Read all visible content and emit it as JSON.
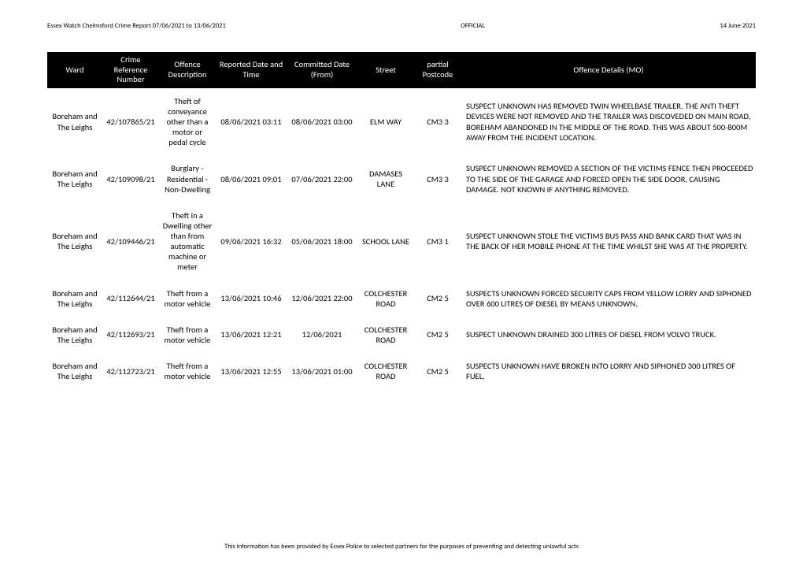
{
  "header": {
    "title_left": "Essex Watch Chelmsford Crime Report 07/06/2021 to 13/06/2021",
    "title_center": "OFFICIAL",
    "title_right": "14 June 2021"
  },
  "table": {
    "columns": [
      "Ward",
      "Crime Reference Number",
      "Offence Description",
      "Reported Date and Time",
      "Committed Date (From)",
      "Street",
      "partial Postcode",
      "Offence Details (MO)"
    ],
    "rows": [
      {
        "ward": "Boreham and The Leighs",
        "ref": "42/107865/21",
        "desc": "Theft of conveyance other than a motor or pedal cycle",
        "reported": "08/06/2021 03:11",
        "committed": "08/06/2021 03:00",
        "street": "ELM WAY",
        "postcode": "CM3 3",
        "mo": "SUSPECT UNKNOWN HAS REMOVED TWIN WHEELBASE TRAILER. THE ANTI THEFT DEVICES WERE NOT REMOVED AND THE TRAILER WAS DISCOVEDED ON MAIN ROAD, BOREHAM ABANDONED IN THE MIDDLE OF THE ROAD. THIS WAS ABOUT 500-800M AWAY FROM THE INCIDENT LOCATION."
      },
      {
        "ward": "Boreham and The Leighs",
        "ref": "42/109098/21",
        "desc": "Burglary - Residential - Non-Dwelling",
        "reported": "08/06/2021 09:01",
        "committed": "07/06/2021 22:00",
        "street": "DAMASES LANE",
        "postcode": "CM3 3",
        "mo": "SUSPECT UNKNOWN REMOVED A SECTION OF THE VICTIMS FENCE THEN PROCEEDED TO THE SIDE OF THE GARAGE AND FORCED OPEN THE SIDE DOOR, CAUSING DAMAGE. NOT KNOWN IF ANYTHING REMOVED."
      },
      {
        "ward": "Boreham and The Leighs",
        "ref": "42/109446/21",
        "desc": "Theft in a Dwelling other than from automatic machine or meter",
        "reported": "09/06/2021 16:32",
        "committed": "05/06/2021 18:00",
        "street": "SCHOOL LANE",
        "postcode": "CM3 1",
        "mo": "SUSPECT UNKNOWN STOLE THE VICTIMS BUS PASS AND BANK CARD THAT WAS IN THE BACK OF HER MOBILE PHONE AT THE TIME WHILST SHE WAS AT THE PROPERTY."
      },
      {
        "ward": "Boreham and The Leighs",
        "ref": "42/112644/21",
        "desc": "Theft from a motor vehicle",
        "reported": "13/06/2021 10:46",
        "committed": "12/06/2021 22:00",
        "street": "COLCHESTER ROAD",
        "postcode": "CM2 5",
        "mo": "SUSPECTS UNKNOWN FORCED SECURITY CAPS FROM YELLOW LORRY AND SIPHONED OVER 600 LITRES OF DIESEL BY MEANS UNKNOWN."
      },
      {
        "ward": "Boreham and The Leighs",
        "ref": "42/112693/21",
        "desc": "Theft from a motor vehicle",
        "reported": "13/06/2021 12:21",
        "committed": "12/06/2021",
        "street": "COLCHESTER ROAD",
        "postcode": "CM2 5",
        "mo": "SUSPECT UNKNOWN DRAINED 300 LITRES OF DIESEL FROM VOLVO TRUCK."
      },
      {
        "ward": "Boreham and The Leighs",
        "ref": "42/112723/21",
        "desc": "Theft from a motor vehicle",
        "reported": "13/06/2021 12:55",
        "committed": "13/06/2021 01:00",
        "street": "COLCHESTER ROAD",
        "postcode": "CM2 5",
        "mo": "SUSPECTS UNKNOWN HAVE BROKEN INTO LORRY AND SIPHONED 300 LITRES OF FUEL."
      }
    ]
  },
  "footer": {
    "text": "This information has been provided by Essex Police to selected partners for the purposes of preventing and detecting unlawful acts"
  }
}
